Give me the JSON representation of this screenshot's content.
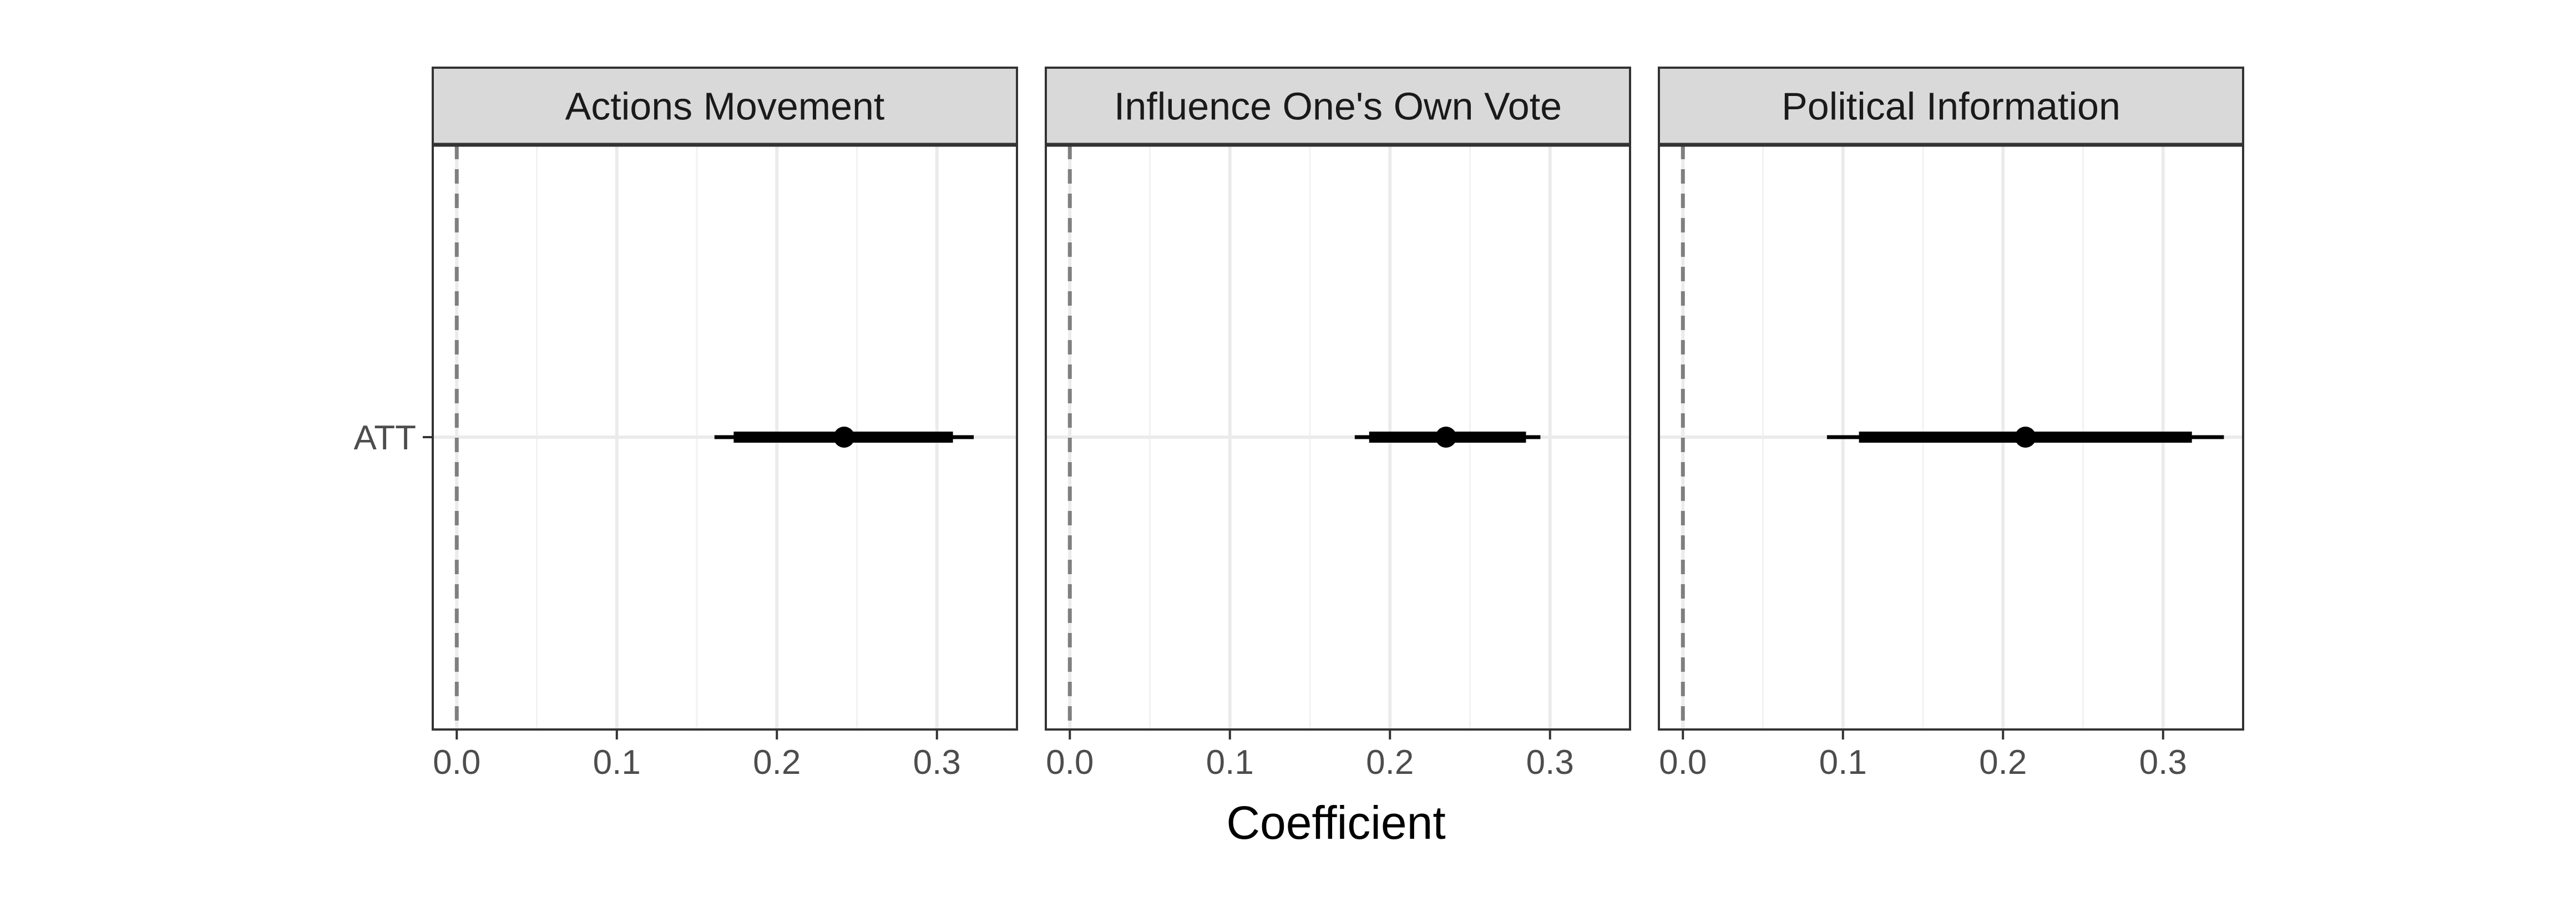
{
  "chart_data": {
    "type": "coefficient-plot",
    "xlabel": "Coefficient",
    "ylabel": "",
    "xlim": [
      -0.015,
      0.35
    ],
    "x_ticks": [
      0.0,
      0.1,
      0.2,
      0.3
    ],
    "x_tick_labels": [
      "0.0",
      "0.1",
      "0.2",
      "0.3"
    ],
    "x_minor_ticks": [
      0.05,
      0.15,
      0.25
    ],
    "reference_line": 0,
    "categories": [
      "ATT"
    ],
    "grid": true,
    "panels": [
      {
        "title": "Actions Movement",
        "estimates": [
          {
            "term": "ATT",
            "estimate": 0.242,
            "inner": [
              0.173,
              0.31
            ],
            "outer": [
              0.161,
              0.323
            ]
          }
        ]
      },
      {
        "title": "Influence One's Own Vote",
        "estimates": [
          {
            "term": "ATT",
            "estimate": 0.235,
            "inner": [
              0.187,
              0.285
            ],
            "outer": [
              0.178,
              0.294
            ]
          }
        ]
      },
      {
        "title": "Political Information",
        "estimates": [
          {
            "term": "ATT",
            "estimate": 0.214,
            "inner": [
              0.11,
              0.318
            ],
            "outer": [
              0.09,
              0.338
            ]
          }
        ]
      }
    ]
  }
}
